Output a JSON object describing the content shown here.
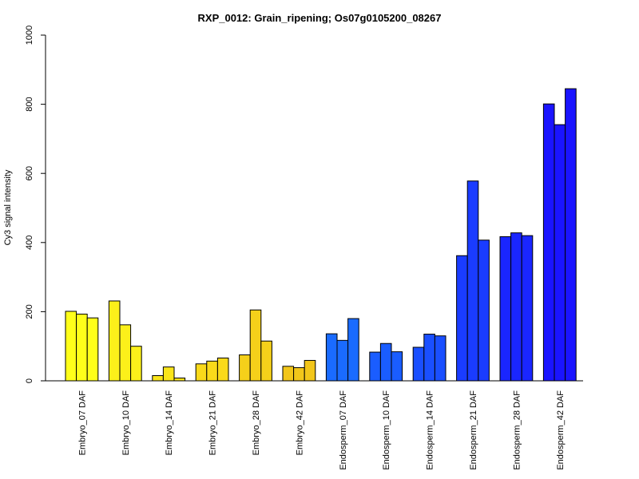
{
  "chart_data": {
    "type": "bar",
    "title": "RXP_0012: Grain_ripening; Os07g0105200_08267",
    "xlabel": "",
    "ylabel": "Cy3 signal intensity",
    "ylim": [
      0,
      1000
    ],
    "yticks": [
      0,
      200,
      400,
      600,
      800,
      1000
    ],
    "grid": false,
    "legend": "none",
    "categories": [
      "Embryo_07 DAF",
      "Embryo_10 DAF",
      "Embryo_14 DAF",
      "Embryo_21 DAF",
      "Embryo_28 DAF",
      "Embryo_42 DAF",
      "Endosperm_07 DAF",
      "Endosperm_10 DAF",
      "Endosperm_14 DAF",
      "Endosperm_21 DAF",
      "Endosperm_28 DAF",
      "Endosperm_42 DAF"
    ],
    "category_colors": [
      "#ffff1a",
      "#fcf01a",
      "#fae51a",
      "#fada1a",
      "#f5d01a",
      "#f2c61a",
      "#1a6bff",
      "#1a5dff",
      "#1a4fff",
      "#1a3cff",
      "#1a26ff",
      "#1a14ff"
    ],
    "replicates": [
      [
        201,
        193,
        182
      ],
      [
        231,
        162,
        100
      ],
      [
        15,
        40,
        8
      ],
      [
        49,
        57,
        66
      ],
      [
        75,
        205,
        115
      ],
      [
        42,
        38,
        59
      ],
      [
        136,
        117,
        180
      ],
      [
        83,
        108,
        84
      ],
      [
        97,
        135,
        130
      ],
      [
        362,
        578,
        407
      ],
      [
        417,
        428,
        420
      ],
      [
        801,
        741,
        845
      ]
    ]
  }
}
